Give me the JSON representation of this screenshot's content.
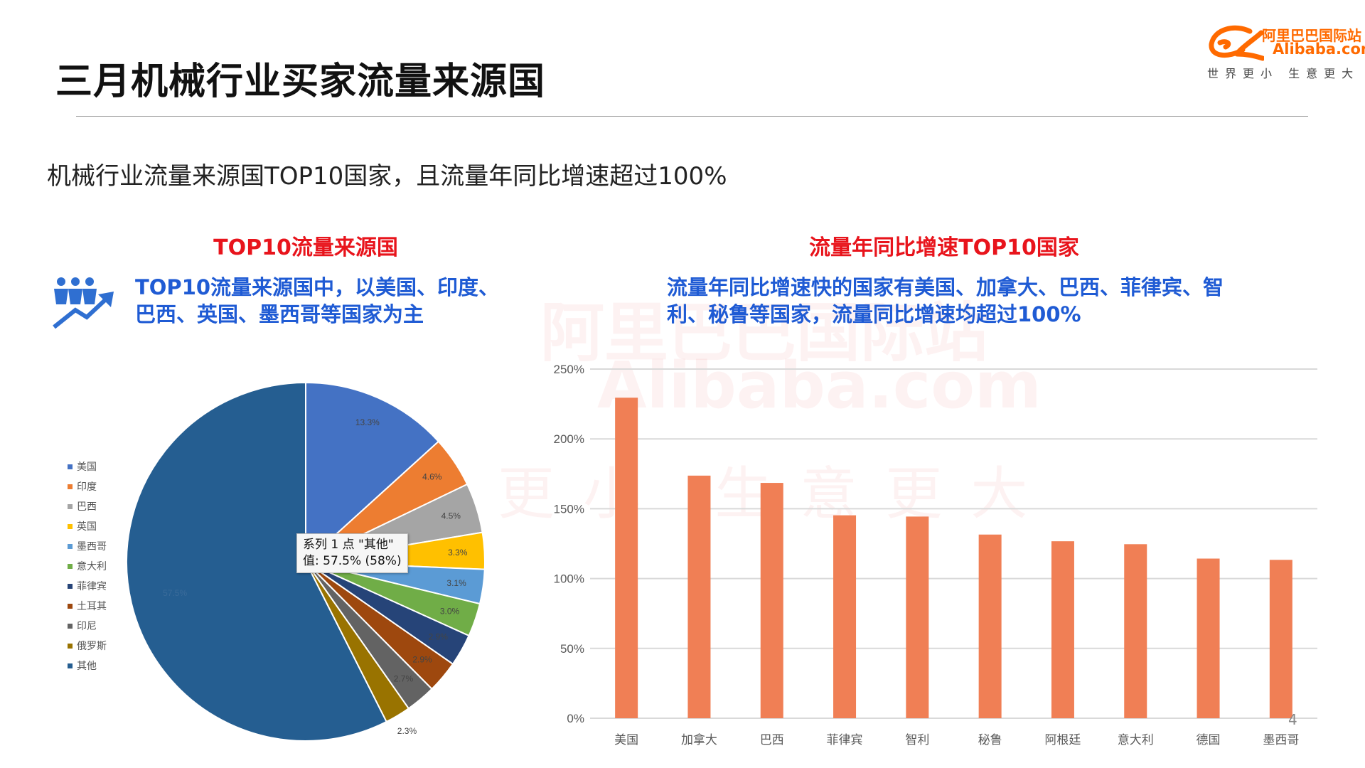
{
  "header": {
    "title": "三月机械行业买家流量来源国",
    "subtitle": "机械行业流量来源国TOP10国家，且流量年同比增速超过100%"
  },
  "logo": {
    "cn": "阿里巴巴国际站",
    "en": "Alibaba.com",
    "slogan": "世界更小 生意更大",
    "color": "#ff6a00"
  },
  "watermark": {
    "cn": "阿里巴巴国际站",
    "en": "Alibaba.com",
    "slogan": "更小 生意更大"
  },
  "left_panel": {
    "heading": "TOP10流量来源国",
    "summary_line1": "TOP10流量来源国中，以美国、印度、",
    "summary_line2": "巴西、英国、墨西哥等国家为主",
    "icon": "people-growth-icon"
  },
  "right_panel": {
    "heading": "流量年同比增速TOP10国家",
    "summary_line1": "流量年同比增速快的国家有美国、加拿大、巴西、菲律宾、智",
    "summary_line2": "利、秘鲁等国家，流量同比增速均超过100%"
  },
  "tooltip": {
    "line1": "系列 1 点 \"其他\"",
    "line2": "值: 57.5% (58%)"
  },
  "page_number": "4",
  "chart_data": [
    {
      "type": "pie",
      "legend_position": "left",
      "categories": [
        "美国",
        "印度",
        "巴西",
        "英国",
        "墨西哥",
        "意大利",
        "菲律宾",
        "土耳其",
        "印尼",
        "俄罗斯",
        "其他"
      ],
      "values": [
        13.3,
        4.6,
        4.5,
        3.3,
        3.1,
        3.0,
        2.9,
        2.9,
        2.7,
        2.3,
        57.5
      ],
      "labels": [
        "13.3%",
        "4.6%",
        "4.5%",
        "3.3%",
        "3.1%",
        "3.0%",
        "2.9%",
        "2.9%",
        "2.7%",
        "2.3%",
        "57.5%"
      ],
      "colors": [
        "#4472c4",
        "#ed7d31",
        "#a5a5a5",
        "#ffc000",
        "#5b9bd5",
        "#70ad47",
        "#264478",
        "#9e480e",
        "#636363",
        "#997300",
        "#255e91"
      ]
    },
    {
      "type": "bar",
      "categories": [
        "美国",
        "加拿大",
        "巴西",
        "菲律宾",
        "智利",
        "秘鲁",
        "阿根廷",
        "意大利",
        "德国",
        "墨西哥"
      ],
      "values": [
        229.5,
        173.7,
        168.5,
        145.3,
        144.4,
        131.5,
        126.7,
        124.6,
        114.3,
        113.4
      ],
      "ylim": [
        0,
        250
      ],
      "yticks": [
        "0%",
        "50%",
        "100%",
        "150%",
        "200%",
        "250%"
      ],
      "grid": true,
      "color": "#f07f55"
    }
  ]
}
